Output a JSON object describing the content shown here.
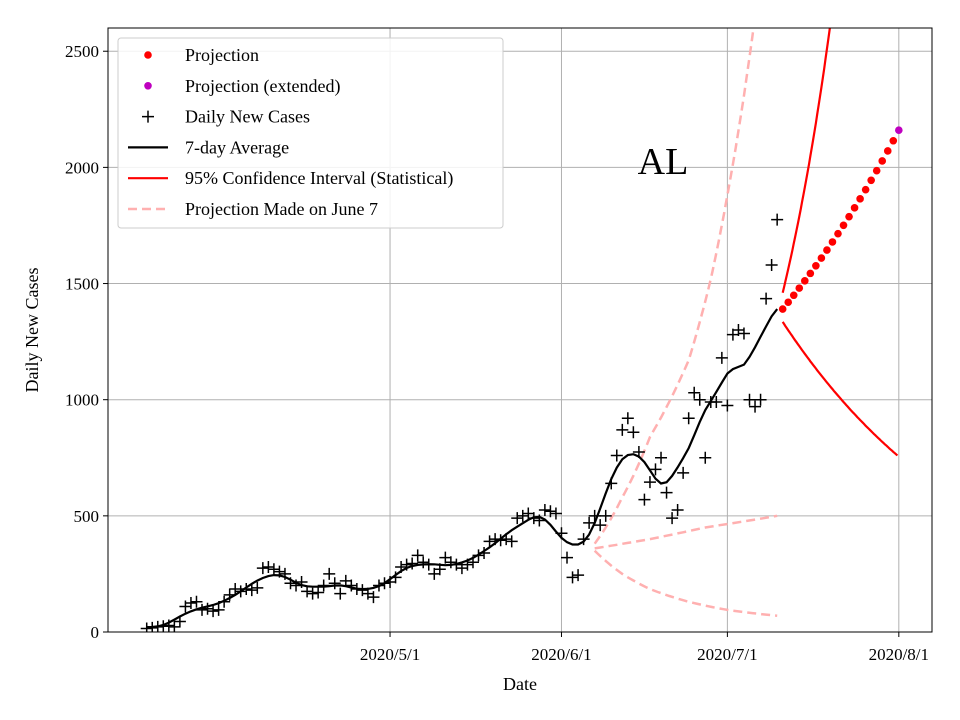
{
  "chart_data": {
    "type": "line",
    "title": "AL",
    "xlabel": "Date",
    "ylabel": "Daily New Cases",
    "ylim": [
      0,
      2600
    ],
    "xlim": [
      "2020-03-11",
      "2020-08-07"
    ],
    "grid": true,
    "legend_position": "top-left",
    "x_ticks": [
      {
        "date": "2020-05-01",
        "label": "2020/5/1"
      },
      {
        "date": "2020-06-01",
        "label": "2020/6/1"
      },
      {
        "date": "2020-07-01",
        "label": "2020/7/1"
      },
      {
        "date": "2020-08-01",
        "label": "2020/8/1"
      }
    ],
    "y_ticks": [
      0,
      500,
      1000,
      1500,
      2000,
      2500
    ],
    "legend": [
      {
        "key": "projection",
        "label": "Projection",
        "style": "dot",
        "color": "#ff0000"
      },
      {
        "key": "extended",
        "label": "Projection (extended)",
        "style": "dot",
        "color": "#bf00bf"
      },
      {
        "key": "daily",
        "label": "Daily New Cases",
        "style": "plus",
        "color": "#000000"
      },
      {
        "key": "avg",
        "label": "7-day Average",
        "style": "line",
        "color": "#000000"
      },
      {
        "key": "ci",
        "label": "95% Confidence Interval (Statistical)",
        "style": "line",
        "color": "#ff0000"
      },
      {
        "key": "june7",
        "label": "Projection Made on June 7",
        "style": "dashed",
        "color": "#ffb0b0"
      }
    ],
    "daily_new_cases": {
      "start_date": "2020-03-18",
      "values": [
        15,
        18,
        22,
        25,
        28,
        22,
        45,
        110,
        125,
        130,
        95,
        100,
        90,
        95,
        130,
        160,
        185,
        175,
        185,
        180,
        190,
        275,
        280,
        270,
        260,
        250,
        210,
        200,
        215,
        175,
        165,
        170,
        200,
        250,
        210,
        165,
        220,
        200,
        185,
        180,
        165,
        150,
        200,
        210,
        215,
        235,
        280,
        290,
        295,
        330,
        300,
        290,
        250,
        270,
        320,
        300,
        290,
        275,
        290,
        300,
        330,
        340,
        390,
        400,
        395,
        400,
        390,
        490,
        500,
        510,
        490,
        480,
        525,
        520,
        510,
        425,
        320,
        235,
        245,
        400,
        470,
        500,
        460,
        500,
        640,
        760,
        870,
        920,
        860,
        775,
        570,
        645,
        700,
        750,
        600,
        490,
        525,
        685,
        920,
        1030,
        1000,
        750,
        990,
        990,
        1180,
        975,
        1280,
        1300,
        1285,
        1000,
        970,
        1000,
        1435,
        1580,
        1775
      ]
    },
    "projection": {
      "start_date": "2020-07-11",
      "start_value": 1390,
      "daily_growth": 1.0212,
      "days": 21
    },
    "projection_extended": {
      "date": "2020-08-01",
      "value": 2160
    },
    "confidence_interval": {
      "start_date": "2020-07-11",
      "days": 21,
      "upper_start": 1460,
      "upper_growth": 1.07,
      "lower_start": 1335,
      "lower_growth": 0.9732
    },
    "projection_june7": {
      "upper": [
        [
          "2020-06-07",
          380
        ],
        [
          "2020-06-12",
          580
        ],
        [
          "2020-06-17",
          840
        ],
        [
          "2020-06-24",
          1170
        ],
        [
          "2020-06-28",
          1520
        ],
        [
          "2020-07-01",
          1880
        ],
        [
          "2020-07-06",
          2650
        ]
      ],
      "middle": [
        [
          "2020-06-07",
          360
        ],
        [
          "2020-06-17",
          400
        ],
        [
          "2020-06-27",
          450
        ],
        [
          "2020-07-10",
          500
        ]
      ],
      "lower": [
        [
          "2020-06-07",
          350
        ],
        [
          "2020-06-12",
          250
        ],
        [
          "2020-06-17",
          185
        ],
        [
          "2020-06-24",
          130
        ],
        [
          "2020-07-01",
          95
        ],
        [
          "2020-07-10",
          70
        ]
      ]
    }
  }
}
